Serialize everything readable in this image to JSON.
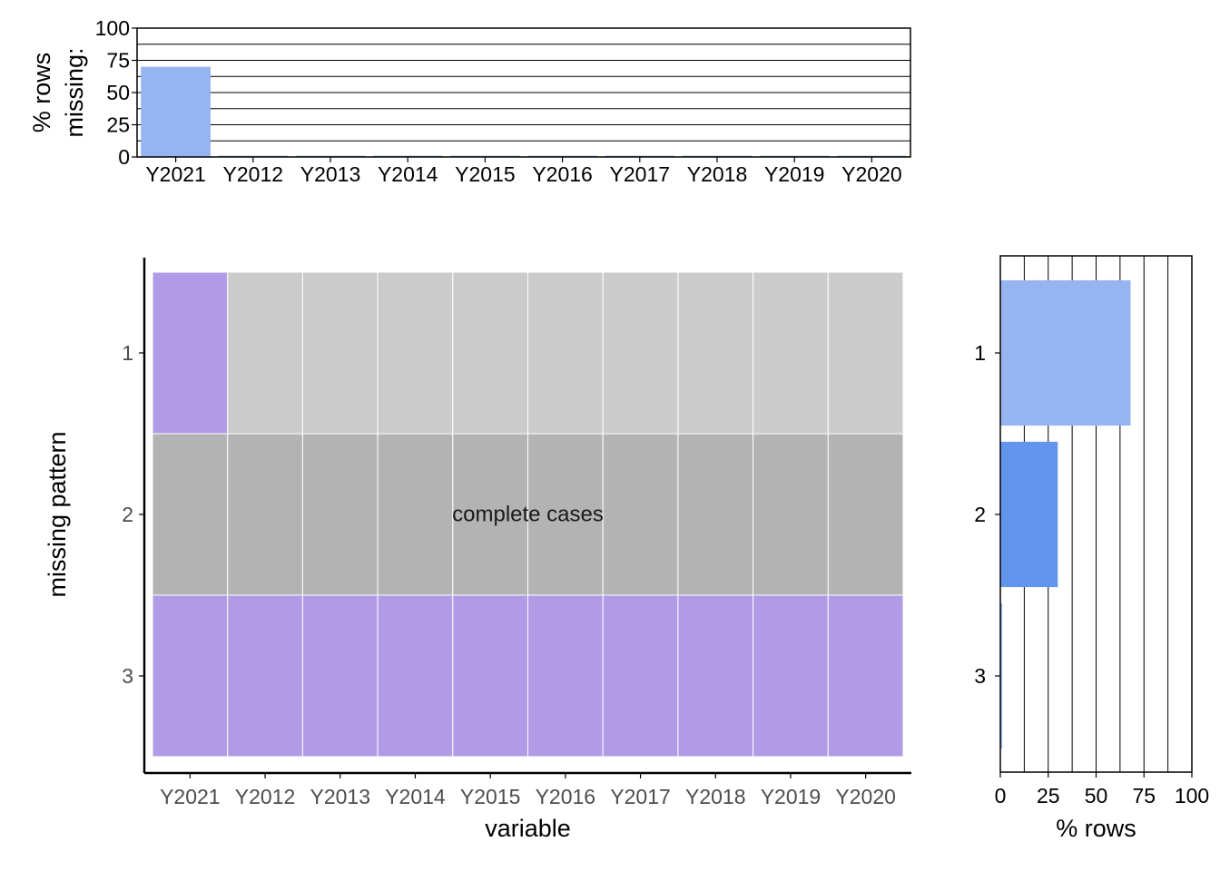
{
  "chart_data": [
    {
      "type": "bar",
      "panel": "top",
      "ylabel_lines": [
        "% rows",
        "missing:"
      ],
      "categories": [
        "Y2021",
        "Y2012",
        "Y2013",
        "Y2014",
        "Y2015",
        "Y2016",
        "Y2017",
        "Y2018",
        "Y2019",
        "Y2020"
      ],
      "values": [
        70,
        1,
        1,
        1,
        1,
        1,
        1,
        1,
        1,
        1
      ],
      "ylim": [
        0,
        100
      ],
      "yticks": [
        0,
        25,
        50,
        75,
        100
      ],
      "grid": "horizontal",
      "bar_color": "#96b4f0"
    },
    {
      "type": "heatmap",
      "panel": "main",
      "xlabel": "variable",
      "ylabel": "missing pattern",
      "x": [
        "Y2021",
        "Y2012",
        "Y2013",
        "Y2014",
        "Y2015",
        "Y2016",
        "Y2017",
        "Y2018",
        "Y2019",
        "Y2020"
      ],
      "y": [
        "1",
        "2",
        "3"
      ],
      "values": [
        [
          1,
          0,
          0,
          0,
          0,
          0,
          0,
          0,
          0,
          0
        ],
        [
          0,
          0,
          0,
          0,
          0,
          0,
          0,
          0,
          0,
          0
        ],
        [
          1,
          1,
          1,
          1,
          1,
          1,
          1,
          1,
          1,
          1
        ]
      ],
      "annotation": "complete cases",
      "annotation_row": "2",
      "colors": {
        "missing": "#b19be6",
        "present": "#cbcbcb",
        "complete": "#b3b3b3"
      }
    },
    {
      "type": "bar",
      "panel": "right",
      "orientation": "horizontal",
      "xlabel": "% rows",
      "categories": [
        "1",
        "2",
        "3"
      ],
      "values": [
        68,
        30,
        1
      ],
      "xlim": [
        0,
        100
      ],
      "xticks": [
        0,
        25,
        50,
        75,
        100
      ],
      "grid": "vertical",
      "bar_colors": [
        "#96b4f0",
        "#6495ed",
        "#96b4f0"
      ]
    }
  ]
}
